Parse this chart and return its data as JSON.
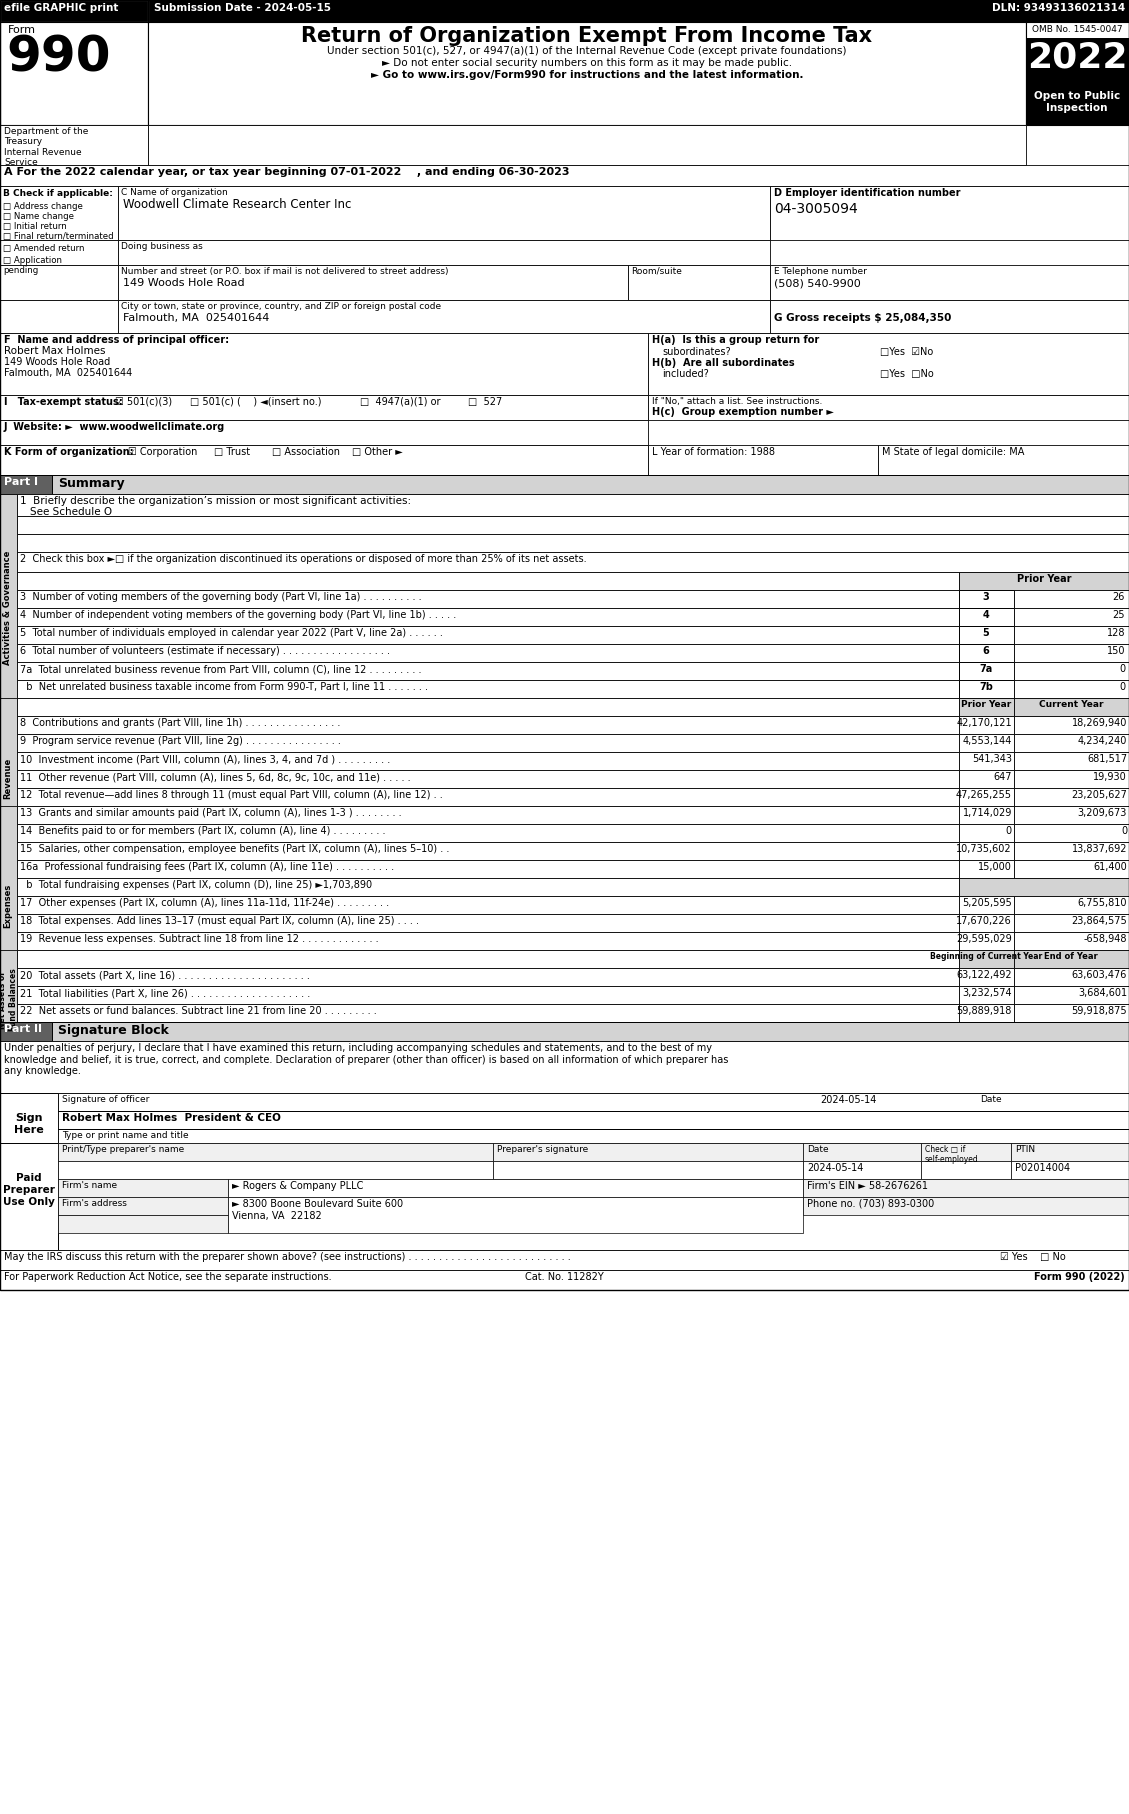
{
  "efile_text": "efile GRAPHIC print",
  "submission_text": "Submission Date - 2024-05-15",
  "dln_text": "DLN: 93493136021314",
  "form_title": "Return of Organization Exempt From Income Tax",
  "omb_text": "OMB No. 1545-0047",
  "year": "2022",
  "subtitle1": "Under section 501(c), 527, or 4947(a)(1) of the Internal Revenue Code (except private foundations)",
  "subtitle2": "► Do not enter social security numbers on this form as it may be made public.",
  "subtitle3": "► Go to www.irs.gov/Form990 for instructions and the latest information.",
  "dept_text": "Department of the\nTreasury\nInternal Revenue\nService",
  "tax_year_line": "A For the 2022 calendar year, or tax year beginning 07-01-2022    , and ending 06-30-2023",
  "b_label": "B Check if applicable:",
  "b_items": [
    "Address change",
    "Name change",
    "Initial return",
    "Final return/terminated",
    "Amended return",
    "Application\npending"
  ],
  "c_label": "C Name of organization",
  "org_name": "Woodwell Climate Research Center Inc",
  "dba_label": "Doing business as",
  "address_label": "Number and street (or P.O. box if mail is not delivered to street address)",
  "address_value": "149 Woods Hole Road",
  "room_label": "Room/suite",
  "city_label": "City or town, state or province, country, and ZIP or foreign postal code",
  "city_value": "Falmouth, MA  025401644",
  "d_label": "D Employer identification number",
  "ein": "04-3005094",
  "e_label": "E Telephone number",
  "phone": "(508) 540-9900",
  "g_label": "G Gross receipts $ 25,084,350",
  "f_label": "F  Name and address of principal officer:",
  "officer_name": "Robert Max Holmes",
  "officer_addr1": "149 Woods Hole Road",
  "officer_addr2": "Falmouth, MA  025401644",
  "ha_label": "H(a)  Is this a group return for",
  "ha_sub": "subordinates?",
  "hb_label": "H(b)  Are all subordinates",
  "hb_sub": "included?",
  "hb_note": "If \"No,\" attach a list. See instructions.",
  "hc_label": "H(c)  Group exemption number ►",
  "l_label": "L Year of formation: 1988",
  "m_label": "M State of legal domicile: MA",
  "part1_label": "Part I",
  "part1_title": "Summary",
  "line1_text": "1  Briefly describe the organization’s mission or most significant activities:",
  "line1_answer": "See Schedule O",
  "line2_text": "2  Check this box ►□ if the organization discontinued its operations or disposed of more than 25% of its net assets.",
  "line3_label": "3  Number of voting members of the governing body (Part VI, line 1a) . . . . . . . . . .",
  "line3_num": "3",
  "line3_val": "26",
  "line4_label": "4  Number of independent voting members of the governing body (Part VI, line 1b) . . . . .",
  "line4_num": "4",
  "line4_val": "25",
  "line5_label": "5  Total number of individuals employed in calendar year 2022 (Part V, line 2a) . . . . . .",
  "line5_num": "5",
  "line5_val": "128",
  "line6_label": "6  Total number of volunteers (estimate if necessary) . . . . . . . . . . . . . . . . . .",
  "line6_num": "6",
  "line6_val": "150",
  "line7a_label": "7a  Total unrelated business revenue from Part VIII, column (C), line 12 . . . . . . . . .",
  "line7a_num": "7a",
  "line7a_val": "0",
  "line7b_label": "  b  Net unrelated business taxable income from Form 990-T, Part I, line 11 . . . . . . .",
  "line7b_num": "7b",
  "line7b_val": "0",
  "col_prior": "Prior Year",
  "col_current": "Current Year",
  "line8_label": "8  Contributions and grants (Part VIII, line 1h) . . . . . . . . . . . . . . . .",
  "line8_prior": "42,170,121",
  "line8_cur": "18,269,940",
  "line9_label": "9  Program service revenue (Part VIII, line 2g) . . . . . . . . . . . . . . . .",
  "line9_prior": "4,553,144",
  "line9_cur": "4,234,240",
  "line10_label": "10  Investment income (Part VIII, column (A), lines 3, 4, and 7d ) . . . . . . . . .",
  "line10_prior": "541,343",
  "line10_cur": "681,517",
  "line11_label": "11  Other revenue (Part VIII, column (A), lines 5, 6d, 8c, 9c, 10c, and 11e) . . . . .",
  "line11_prior": "647",
  "line11_cur": "19,930",
  "line12_label": "12  Total revenue—add lines 8 through 11 (must equal Part VIII, column (A), line 12) . .",
  "line12_prior": "47,265,255",
  "line12_cur": "23,205,627",
  "line13_label": "13  Grants and similar amounts paid (Part IX, column (A), lines 1-3 ) . . . . . . . .",
  "line13_prior": "1,714,029",
  "line13_cur": "3,209,673",
  "line14_label": "14  Benefits paid to or for members (Part IX, column (A), line 4) . . . . . . . . .",
  "line14_prior": "0",
  "line14_cur": "0",
  "line15_label": "15  Salaries, other compensation, employee benefits (Part IX, column (A), lines 5–10) . .",
  "line15_prior": "10,735,602",
  "line15_cur": "13,837,692",
  "line16a_label": "16a  Professional fundraising fees (Part IX, column (A), line 11e) . . . . . . . . . .",
  "line16a_prior": "15,000",
  "line16a_cur": "61,400",
  "line16b_label": "  b  Total fundraising expenses (Part IX, column (D), line 25) ►1,703,890",
  "line17_label": "17  Other expenses (Part IX, column (A), lines 11a-11d, 11f-24e) . . . . . . . . .",
  "line17_prior": "5,205,595",
  "line17_cur": "6,755,810",
  "line18_label": "18  Total expenses. Add lines 13–17 (must equal Part IX, column (A), line 25) . . . .",
  "line18_prior": "17,670,226",
  "line18_cur": "23,864,575",
  "line19_label": "19  Revenue less expenses. Subtract line 18 from line 12 . . . . . . . . . . . . .",
  "line19_prior": "29,595,029",
  "line19_cur": "-658,948",
  "col_begin": "Beginning of Current Year",
  "col_end": "End of Year",
  "line20_label": "20  Total assets (Part X, line 16) . . . . . . . . . . . . . . . . . . . . . .",
  "line20_begin": "63,122,492",
  "line20_end": "63,603,476",
  "line21_label": "21  Total liabilities (Part X, line 26) . . . . . . . . . . . . . . . . . . . .",
  "line21_begin": "3,232,574",
  "line21_end": "3,684,601",
  "line22_label": "22  Net assets or fund balances. Subtract line 21 from line 20 . . . . . . . . .",
  "line22_begin": "59,889,918",
  "line22_end": "59,918,875",
  "part2_label": "Part II",
  "part2_title": "Signature Block",
  "sig_text": "Under penalties of perjury, I declare that I have examined this return, including accompanying schedules and statements, and to the best of my\nknowledge and belief, it is true, correct, and complete. Declaration of preparer (other than officer) is based on all information of which preparer has\nany knowledge.",
  "sig_date": "2024-05-14",
  "sig_name": "Robert Max Holmes  President & CEO",
  "prep_date": "2024-05-14",
  "prep_ptin": "P02014004",
  "firm_name": "► Rogers & Company PLLC",
  "firm_ein": "58-2676261",
  "firm_addr": "► 8300 Boone Boulevard Suite 600",
  "firm_city": "Vienna, VA  22182",
  "firm_phone": "(703) 893-0300",
  "discuss_label": "May the IRS discuss this return with the preparer shown above? (see instructions) . . . . . . . . . . . . . . . . . . . . . . . . . . .",
  "paperwork_label": "For Paperwork Reduction Act Notice, see the separate instructions.",
  "cat_no": "Cat. No. 11282Y",
  "form_footer": "Form 990 (2022)"
}
